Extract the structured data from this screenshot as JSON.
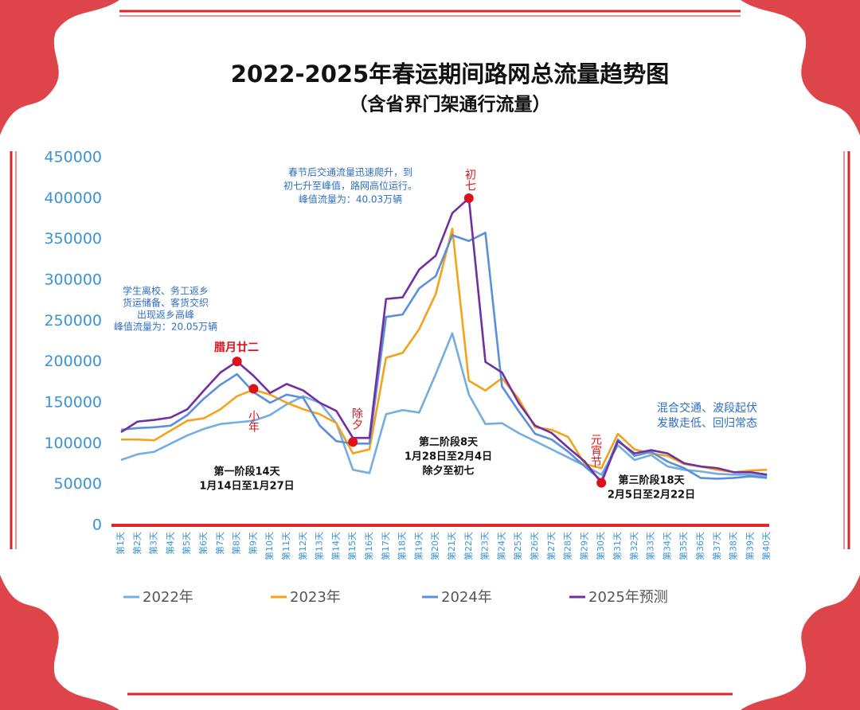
{
  "chart_data": {
    "type": "line",
    "title": "2022-2025年春运期间路网总流量趋势图",
    "subtitle": "（含省界门架通行流量）",
    "categories": [
      "第1天",
      "第2天",
      "第3天",
      "第4天",
      "第5天",
      "第6天",
      "第7天",
      "第8天",
      "第9天",
      "第10天",
      "第11天",
      "第12天",
      "第13天",
      "第14天",
      "第15天",
      "第16天",
      "第17天",
      "第18天",
      "第19天",
      "第20天",
      "第21天",
      "第22天",
      "第23天",
      "第24天",
      "第25天",
      "第26天",
      "第27天",
      "第28天",
      "第29天",
      "第30天",
      "第31天",
      "第32天",
      "第33天",
      "第34天",
      "第35天",
      "第36天",
      "第37天",
      "第38天",
      "第39天",
      "第40天"
    ],
    "series": [
      {
        "name": "2022年",
        "color": "#74aee0",
        "values": [
          80000,
          87000,
          90000,
          100000,
          110000,
          118000,
          124000,
          126000,
          128000,
          135000,
          148000,
          158000,
          150000,
          125000,
          68000,
          64000,
          136000,
          141000,
          138000,
          185000,
          235000,
          160000,
          124000,
          125000,
          113000,
          103000,
          93000,
          83000,
          73000,
          62000,
          98000,
          80000,
          86000,
          72000,
          68000,
          66000,
          63000,
          62000,
          62000,
          60000
        ]
      },
      {
        "name": "2023年",
        "color": "#f5a21b",
        "values": [
          105000,
          105000,
          104000,
          116000,
          128000,
          131000,
          142000,
          158000,
          166000,
          160000,
          150000,
          142000,
          136000,
          125000,
          88000,
          93000,
          205000,
          211000,
          240000,
          283000,
          363000,
          177000,
          165000,
          180000,
          155000,
          120000,
          117000,
          108000,
          75000,
          70000,
          112000,
          93000,
          88000,
          85000,
          75000,
          72000,
          68000,
          65000,
          67000,
          68000
        ]
      },
      {
        "name": "2024年",
        "color": "#5b8fdc",
        "values": [
          117000,
          119000,
          120000,
          122000,
          135000,
          155000,
          172000,
          185000,
          163000,
          150000,
          160000,
          156000,
          122000,
          103000,
          100000,
          100000,
          255000,
          258000,
          290000,
          305000,
          355000,
          348000,
          358000,
          170000,
          140000,
          112000,
          105000,
          90000,
          72000,
          55000,
          105000,
          85000,
          90000,
          78000,
          70000,
          58000,
          57000,
          58000,
          60000,
          58000
        ]
      },
      {
        "name": "2025年预测",
        "color": "#7030a0",
        "values": [
          114000,
          127000,
          129000,
          132000,
          142000,
          165000,
          187000,
          200500,
          183000,
          162000,
          173000,
          165000,
          150000,
          140000,
          107000,
          107000,
          277000,
          279000,
          313000,
          330000,
          382000,
          400300,
          200000,
          187000,
          150000,
          122000,
          113000,
          95000,
          78000,
          52000,
          103000,
          88000,
          92000,
          88000,
          76000,
          72000,
          70000,
          65000,
          65000,
          62000
        ]
      }
    ],
    "ylim": [
      0,
      450000
    ],
    "yticks": [
      0,
      50000,
      100000,
      150000,
      200000,
      250000,
      300000,
      350000,
      400000,
      450000
    ],
    "markers": [
      {
        "label": "腊月廿二",
        "x": "第8天",
        "y": 200500
      },
      {
        "label": "小年",
        "x": "第9天",
        "y": 167000
      },
      {
        "label": "除夕",
        "x": "第15天",
        "y": 102000
      },
      {
        "label": "初七",
        "x": "第22天",
        "y": 400300
      },
      {
        "label": "元宵节",
        "x": "第30天",
        "y": 52000
      }
    ],
    "annotations": [
      [
        "学生离校、务工返乡",
        "货运储备、客货交织",
        "出现返乡高峰",
        "峰值流量为：20.05万辆"
      ],
      [
        "春节后交通流量迅速爬升，到",
        "初七升至峰值，路网高位运行。",
        "峰值流量为：40.03万辆"
      ],
      [
        "混合交通、波段起伏",
        "发散走低、回归常态"
      ]
    ],
    "stages": [
      [
        "第一阶段14天",
        "1月14日至1月27日"
      ],
      [
        "第二阶段8天",
        "1月28日至2月4日",
        "除夕至初七"
      ],
      [
        "第三阶段18天",
        "2月5日至2月22日"
      ]
    ]
  }
}
